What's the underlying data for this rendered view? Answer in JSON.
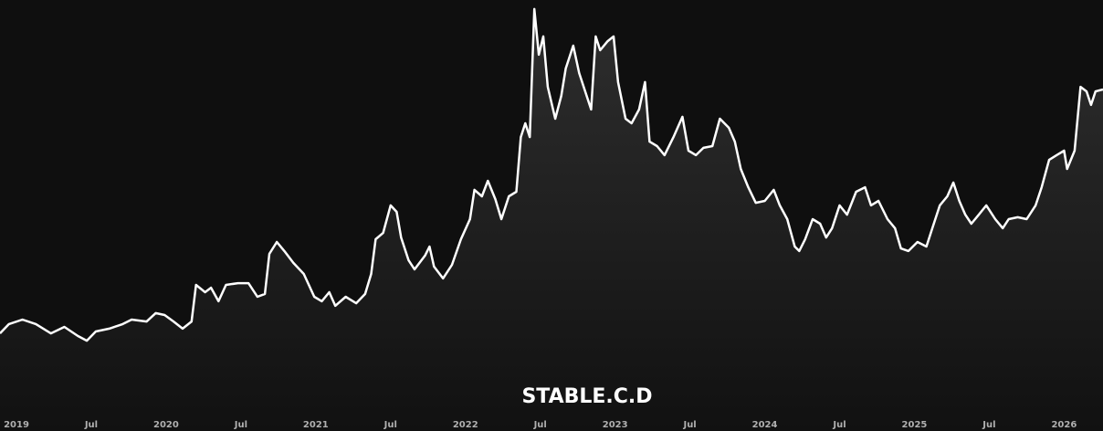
{
  "chart_data": {
    "type": "area",
    "title": "STABLE.C.D",
    "color": "#ffffff",
    "xlim": [
      2018.89,
      2026.26
    ],
    "ylim": [
      0,
      20
    ],
    "xticks": [
      {
        "value": 2019,
        "label": "2019"
      },
      {
        "value": 2019.5,
        "label": "Jul"
      },
      {
        "value": 2020,
        "label": "2020"
      },
      {
        "value": 2020.5,
        "label": "Jul"
      },
      {
        "value": 2021,
        "label": "2021"
      },
      {
        "value": 2021.5,
        "label": "Jul"
      },
      {
        "value": 2022,
        "label": "2022"
      },
      {
        "value": 2022.5,
        "label": "Jul"
      },
      {
        "value": 2023,
        "label": "2023"
      },
      {
        "value": 2023.5,
        "label": "Jul"
      },
      {
        "value": 2024,
        "label": "2024"
      },
      {
        "value": 2024.5,
        "label": "Jul"
      },
      {
        "value": 2025,
        "label": "2025"
      },
      {
        "value": 2025.5,
        "label": "Jul"
      },
      {
        "value": 2026,
        "label": "2026"
      }
    ],
    "x": [
      2018.89,
      2018.95,
      2019.04,
      2019.13,
      2019.23,
      2019.32,
      2019.41,
      2019.47,
      2019.53,
      2019.62,
      2019.71,
      2019.77,
      2019.87,
      2019.93,
      2019.99,
      2020.05,
      2020.11,
      2020.17,
      2020.2,
      2020.26,
      2020.3,
      2020.35,
      2020.4,
      2020.48,
      2020.55,
      2020.61,
      2020.66,
      2020.69,
      2020.74,
      2020.79,
      2020.85,
      2020.92,
      2020.99,
      2021.04,
      2021.09,
      2021.13,
      2021.2,
      2021.27,
      2021.33,
      2021.37,
      2021.4,
      2021.45,
      2021.5,
      2021.54,
      2021.57,
      2021.62,
      2021.66,
      2021.73,
      2021.76,
      2021.79,
      2021.85,
      2021.91,
      2021.97,
      2022.03,
      2022.06,
      2022.11,
      2022.15,
      2022.2,
      2022.24,
      2022.29,
      2022.34,
      2022.37,
      2022.4,
      2022.43,
      2022.46,
      2022.49,
      2022.52,
      2022.55,
      2022.6,
      2022.64,
      2022.67,
      2022.72,
      2022.76,
      2022.8,
      2022.84,
      2022.87,
      2022.9,
      2022.95,
      2022.99,
      2023.02,
      2023.07,
      2023.11,
      2023.16,
      2023.2,
      2023.23,
      2023.28,
      2023.33,
      2023.39,
      2023.45,
      2023.49,
      2023.54,
      2023.59,
      2023.65,
      2023.7,
      2023.76,
      2023.8,
      2023.84,
      2023.89,
      2023.94,
      2024.0,
      2024.06,
      2024.1,
      2024.15,
      2024.2,
      2024.23,
      2024.27,
      2024.32,
      2024.37,
      2024.41,
      2024.45,
      2024.5,
      2024.55,
      2024.61,
      2024.67,
      2024.71,
      2024.76,
      2024.82,
      2024.87,
      2024.91,
      2024.96,
      2025.02,
      2025.08,
      2025.12,
      2025.17,
      2025.22,
      2025.26,
      2025.3,
      2025.34,
      2025.38,
      2025.43,
      2025.48,
      2025.54,
      2025.59,
      2025.63,
      2025.69,
      2025.75,
      2025.81,
      2025.85,
      2025.9,
      2025.95,
      2026.0,
      2026.02,
      2026.07,
      2026.11,
      2026.15,
      2026.18,
      2026.21,
      2026.26
    ],
    "values": [
      4.53,
      4.96,
      5.17,
      4.96,
      4.53,
      4.83,
      4.41,
      4.19,
      4.62,
      4.75,
      4.96,
      5.17,
      5.08,
      5.47,
      5.38,
      5.08,
      4.75,
      5.08,
      6.78,
      6.44,
      6.65,
      6.02,
      6.78,
      6.86,
      6.86,
      6.23,
      6.36,
      8.22,
      8.77,
      8.35,
      7.8,
      7.29,
      6.23,
      6.02,
      6.44,
      5.81,
      6.23,
      5.93,
      6.36,
      7.29,
      8.9,
      9.19,
      10.47,
      10.17,
      8.98,
      7.92,
      7.5,
      8.14,
      8.56,
      7.63,
      7.08,
      7.71,
      8.9,
      9.83,
      11.19,
      10.89,
      11.61,
      10.76,
      9.83,
      10.89,
      11.1,
      13.64,
      14.28,
      13.64,
      19.58,
      17.46,
      18.31,
      15.97,
      14.49,
      15.55,
      16.82,
      17.88,
      16.61,
      15.76,
      14.92,
      18.31,
      17.67,
      18.09,
      18.31,
      16.19,
      14.49,
      14.28,
      14.92,
      16.19,
      13.43,
      13.22,
      12.8,
      13.64,
      14.58,
      13.01,
      12.8,
      13.14,
      13.22,
      14.49,
      14.07,
      13.43,
      12.16,
      11.31,
      10.59,
      10.68,
      11.19,
      10.47,
      9.83,
      8.56,
      8.35,
      8.9,
      9.83,
      9.62,
      8.98,
      9.41,
      10.47,
      10.04,
      11.1,
      11.31,
      10.47,
      10.68,
      9.83,
      9.41,
      8.47,
      8.35,
      8.77,
      8.56,
      9.41,
      10.47,
      10.89,
      11.53,
      10.68,
      10.04,
      9.62,
      10.04,
      10.47,
      9.83,
      9.41,
      9.83,
      9.92,
      9.83,
      10.47,
      11.31,
      12.58,
      12.8,
      13.01,
      12.16,
      13.01,
      15.97,
      15.76,
      15.13,
      15.76,
      15.85
    ]
  }
}
